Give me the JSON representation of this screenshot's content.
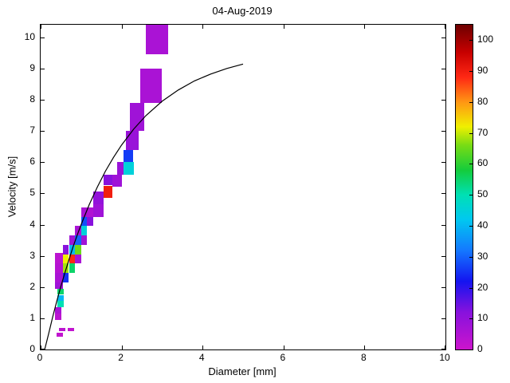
{
  "figure": {
    "background": "#ffffff"
  },
  "chart_data": {
    "type": "heatmap",
    "title": "04-Aug-2019",
    "xlabel": "Diameter [mm]",
    "ylabel": "Velocity [m/s]",
    "xlim": [
      0,
      10
    ],
    "ylim": [
      0,
      10.4
    ],
    "x_ticks": [
      0,
      2,
      4,
      6,
      8,
      10
    ],
    "y_ticks": [
      0,
      1,
      2,
      3,
      4,
      5,
      6,
      7,
      8,
      9,
      10
    ],
    "grid": false,
    "legend": "none",
    "colorbar": {
      "min": 0,
      "max": 105,
      "ticks": [
        0,
        10,
        20,
        30,
        40,
        50,
        60,
        70,
        80,
        90,
        100
      ],
      "position": "right"
    },
    "colormap_stops": [
      [
        0,
        "#cc14cc"
      ],
      [
        12,
        "#8812dd"
      ],
      [
        22,
        "#1414f0"
      ],
      [
        32,
        "#1478ff"
      ],
      [
        42,
        "#00c8f0"
      ],
      [
        50,
        "#00e0b4"
      ],
      [
        58,
        "#14cc3c"
      ],
      [
        66,
        "#78dc14"
      ],
      [
        72,
        "#f0f000"
      ],
      [
        80,
        "#ff9614"
      ],
      [
        88,
        "#ff2814"
      ],
      [
        96,
        "#c80000"
      ],
      [
        105,
        "#6e0000"
      ]
    ],
    "cells_format": [
      "d_min_mm",
      "d_max_mm",
      "v_min_ms",
      "v_max_ms",
      "count"
    ],
    "cells": [
      [
        0.4,
        0.55,
        0.42,
        0.54,
        2
      ],
      [
        0.45,
        0.62,
        0.58,
        0.7,
        3
      ],
      [
        0.66,
        0.82,
        0.58,
        0.7,
        2
      ],
      [
        0.36,
        0.52,
        0.95,
        1.15,
        3
      ],
      [
        0.36,
        0.52,
        1.15,
        1.35,
        6
      ],
      [
        0.42,
        0.57,
        1.35,
        1.55,
        50
      ],
      [
        0.42,
        0.57,
        1.55,
        1.75,
        40
      ],
      [
        0.42,
        0.57,
        1.75,
        1.95,
        55
      ],
      [
        0.36,
        0.55,
        1.95,
        2.15,
        8
      ],
      [
        0.36,
        0.55,
        2.15,
        2.45,
        6
      ],
      [
        0.36,
        0.55,
        2.45,
        2.75,
        4
      ],
      [
        0.36,
        0.55,
        2.75,
        3.1,
        3
      ],
      [
        0.55,
        0.7,
        2.15,
        2.45,
        25
      ],
      [
        0.55,
        0.7,
        2.45,
        2.75,
        68
      ],
      [
        0.55,
        0.7,
        2.75,
        3.05,
        72
      ],
      [
        0.55,
        0.7,
        3.05,
        3.35,
        12
      ],
      [
        0.7,
        0.85,
        2.45,
        2.75,
        55
      ],
      [
        0.7,
        0.85,
        2.75,
        3.05,
        88
      ],
      [
        0.7,
        0.85,
        3.05,
        3.35,
        40
      ],
      [
        0.7,
        0.85,
        3.35,
        3.65,
        8
      ],
      [
        0.85,
        1.0,
        2.75,
        3.05,
        6
      ],
      [
        0.85,
        1.0,
        3.05,
        3.35,
        65
      ],
      [
        0.85,
        1.0,
        3.35,
        3.65,
        30
      ],
      [
        0.85,
        1.0,
        3.65,
        3.95,
        6
      ],
      [
        1.0,
        1.15,
        3.35,
        3.65,
        8
      ],
      [
        1.0,
        1.15,
        3.65,
        3.95,
        45
      ],
      [
        1.0,
        1.15,
        3.95,
        4.25,
        28
      ],
      [
        1.0,
        1.15,
        4.25,
        4.55,
        6
      ],
      [
        1.15,
        1.3,
        3.95,
        4.25,
        12
      ],
      [
        1.15,
        1.3,
        4.25,
        4.55,
        5
      ],
      [
        1.3,
        1.55,
        4.25,
        4.65,
        8
      ],
      [
        1.3,
        1.55,
        4.65,
        5.05,
        10
      ],
      [
        1.55,
        1.78,
        4.85,
        5.25,
        90
      ],
      [
        1.55,
        1.78,
        5.25,
        5.6,
        12
      ],
      [
        1.78,
        2.0,
        5.2,
        5.6,
        8
      ],
      [
        1.88,
        2.05,
        5.6,
        6.0,
        9
      ],
      [
        2.05,
        2.3,
        5.6,
        6.0,
        45
      ],
      [
        2.05,
        2.28,
        6.0,
        6.4,
        26
      ],
      [
        2.1,
        2.42,
        6.4,
        7.0,
        9
      ],
      [
        2.2,
        2.55,
        7.0,
        7.9,
        8
      ],
      [
        2.45,
        3.0,
        7.9,
        9.0,
        6
      ],
      [
        2.6,
        3.15,
        9.45,
        10.4,
        6
      ]
    ],
    "curve": {
      "name": "terminal-velocity-curve",
      "color": "#000000",
      "points": [
        [
          0.1,
          0.0
        ],
        [
          0.2,
          0.52
        ],
        [
          0.3,
          1.05
        ],
        [
          0.4,
          1.55
        ],
        [
          0.5,
          2.02
        ],
        [
          0.6,
          2.46
        ],
        [
          0.7,
          2.88
        ],
        [
          0.8,
          3.28
        ],
        [
          0.9,
          3.65
        ],
        [
          1.0,
          4.0
        ],
        [
          1.2,
          4.64
        ],
        [
          1.4,
          5.2
        ],
        [
          1.6,
          5.71
        ],
        [
          1.8,
          6.15
        ],
        [
          2.0,
          6.55
        ],
        [
          2.3,
          7.06
        ],
        [
          2.6,
          7.49
        ],
        [
          3.0,
          7.95
        ],
        [
          3.4,
          8.31
        ],
        [
          3.8,
          8.6
        ],
        [
          4.2,
          8.82
        ],
        [
          4.6,
          9.0
        ],
        [
          5.0,
          9.14
        ]
      ]
    }
  }
}
